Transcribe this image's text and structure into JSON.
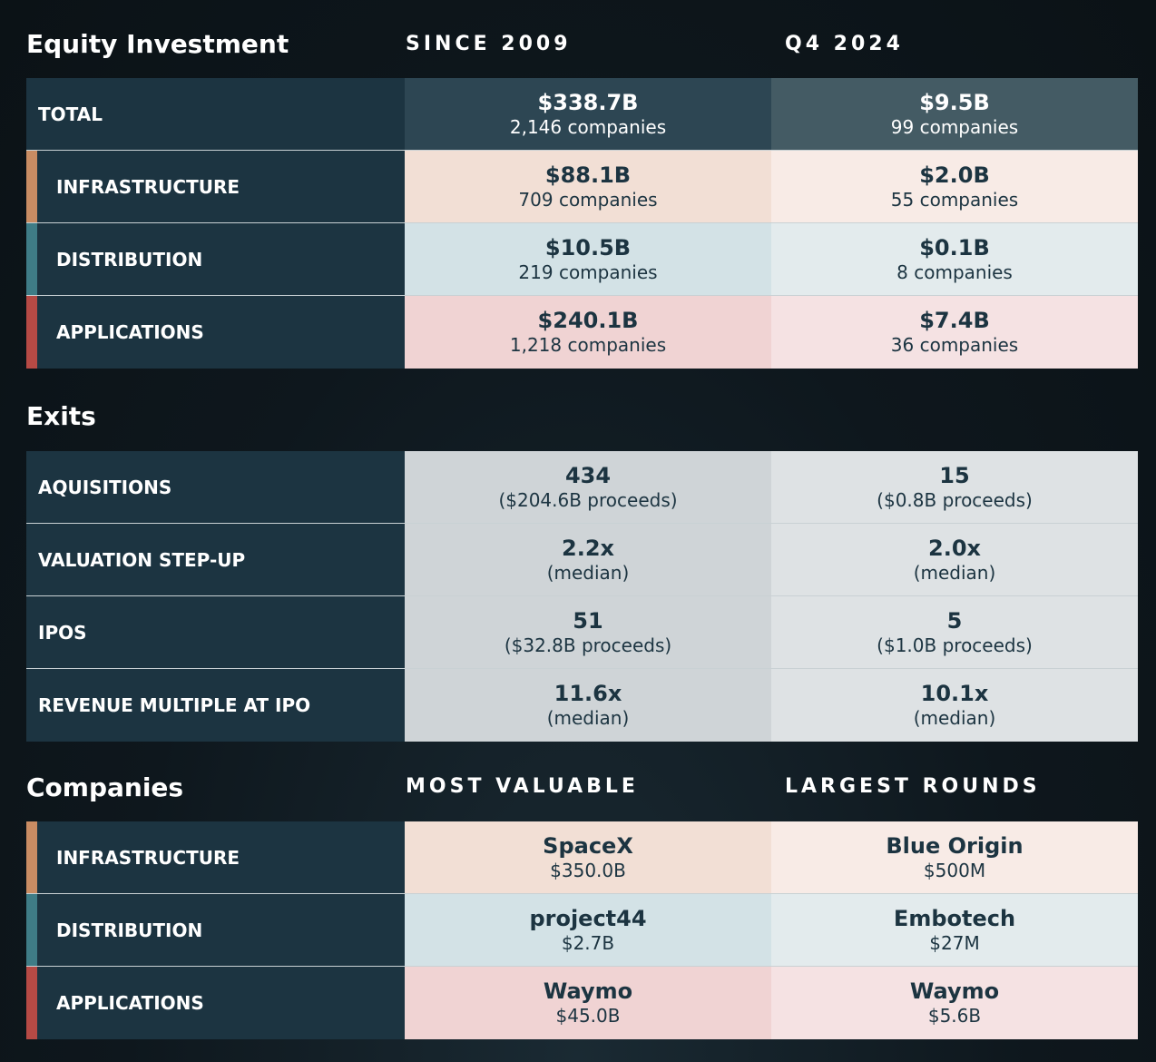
{
  "equity": {
    "title": "Equity Investment",
    "col1": "SINCE 2009",
    "col2": "Q4 2024",
    "rows": [
      {
        "label": "TOTAL",
        "v1_main": "$338.7B",
        "v1_sub": "2,146 companies",
        "v2_main": "$9.5B",
        "v2_sub": "99 companies"
      },
      {
        "label": "INFRASTRUCTURE",
        "v1_main": "$88.1B",
        "v1_sub": "709 companies",
        "v2_main": "$2.0B",
        "v2_sub": "55 companies"
      },
      {
        "label": "DISTRIBUTION",
        "v1_main": "$10.5B",
        "v1_sub": "219 companies",
        "v2_main": "$0.1B",
        "v2_sub": "8 companies"
      },
      {
        "label": "APPLICATIONS",
        "v1_main": "$240.1B",
        "v1_sub": "1,218 companies",
        "v2_main": "$7.4B",
        "v2_sub": "36 companies"
      }
    ]
  },
  "exits": {
    "title": "Exits",
    "rows": [
      {
        "label": "AQUISITIONS",
        "v1_main": "434",
        "v1_sub": "($204.6B proceeds)",
        "v2_main": "15",
        "v2_sub": "($0.8B proceeds)"
      },
      {
        "label": "VALUATION STEP-UP",
        "v1_main": "2.2x",
        "v1_sub": "(median)",
        "v2_main": "2.0x",
        "v2_sub": "(median)"
      },
      {
        "label": "IPOS",
        "v1_main": "51",
        "v1_sub": "($32.8B proceeds)",
        "v2_main": "5",
        "v2_sub": "($1.0B proceeds)"
      },
      {
        "label": "REVENUE MULTIPLE AT IPO",
        "v1_main": "11.6x",
        "v1_sub": "(median)",
        "v2_main": "10.1x",
        "v2_sub": "(median)"
      }
    ]
  },
  "companies": {
    "title": "Companies",
    "col1": "MOST VALUABLE",
    "col2": "LARGEST ROUNDS",
    "rows": [
      {
        "label": "INFRASTRUCTURE",
        "v1_main": "SpaceX",
        "v1_sub": "$350.0B",
        "v2_main": "Blue Origin",
        "v2_sub": "$500M"
      },
      {
        "label": "DISTRIBUTION",
        "v1_main": "project44",
        "v1_sub": "$2.7B",
        "v2_main": "Embotech",
        "v2_sub": "$27M"
      },
      {
        "label": "APPLICATIONS",
        "v1_main": "Waymo",
        "v1_sub": "$45.0B",
        "v2_main": "Waymo",
        "v2_sub": "$5.6B"
      }
    ]
  },
  "colors": {
    "label_bg": "#1c3441",
    "total_col1": "#2d4653",
    "total_col2": "#445b64",
    "infrastructure_accent": "#c98c63",
    "distribution_accent": "#3f7c86",
    "applications_accent": "#b64a45",
    "infrastructure_col1": "#f2dfd5",
    "infrastructure_col2": "#f8ebe6",
    "distribution_col1": "#d3e2e6",
    "distribution_col2": "#e3ebed",
    "applications_col1": "#f0d3d3",
    "applications_col2": "#f5e2e3",
    "exits_col1": "#cfd4d7",
    "exits_col2": "#dee2e4"
  }
}
